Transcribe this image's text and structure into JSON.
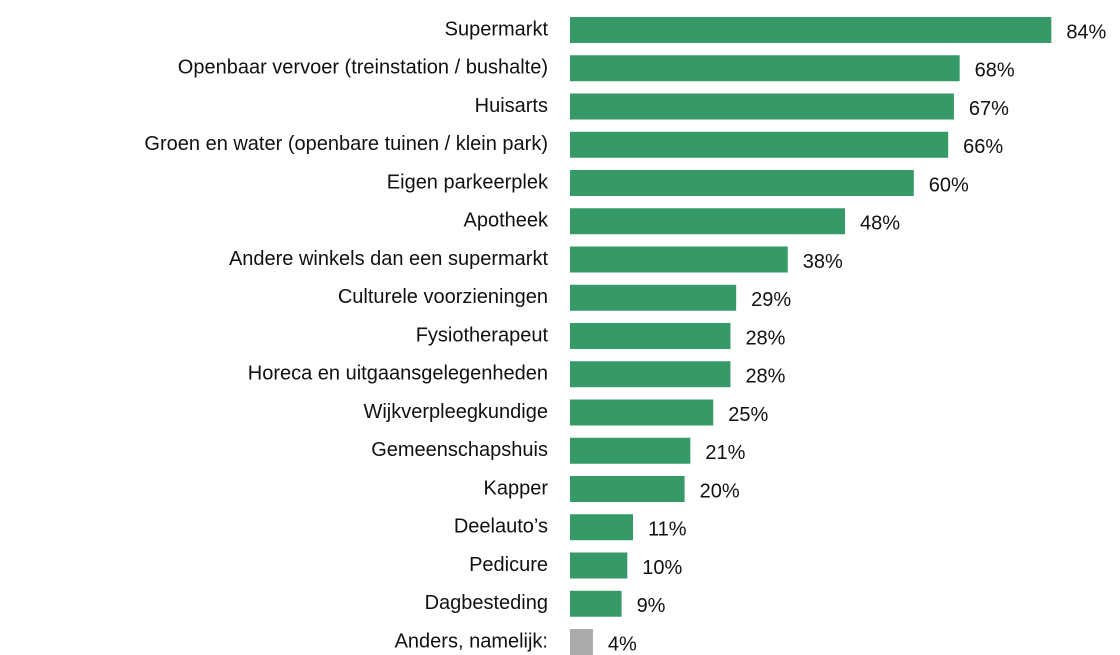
{
  "chart_data": {
    "type": "bar",
    "orientation": "horizontal",
    "categories": [
      "Supermarkt",
      "Openbaar vervoer (treinstation / bushalte)",
      "Huisarts",
      "Groen en water (openbare tuinen / klein park)",
      "Eigen parkeerplek",
      "Apotheek",
      "Andere winkels dan een supermarkt",
      "Culturele voorzieningen",
      "Fysiotherapeut",
      "Horeca en uitgaansgelegenheden",
      "Wijkverpleegkundige",
      "Gemeenschapshuis",
      "Kapper",
      "Deelauto’s",
      "Pedicure",
      "Dagbesteding",
      "Anders, namelijk:"
    ],
    "values": [
      84,
      68,
      67,
      66,
      60,
      48,
      38,
      29,
      28,
      28,
      25,
      21,
      20,
      11,
      10,
      9,
      4
    ],
    "value_labels": [
      "84%",
      "68%",
      "67%",
      "66%",
      "60%",
      "48%",
      "38%",
      "29%",
      "28%",
      "28%",
      "25%",
      "21%",
      "20%",
      "11%",
      "10%",
      "9%",
      "4%"
    ],
    "colors": [
      "#369a68",
      "#369a68",
      "#369a68",
      "#369a68",
      "#369a68",
      "#369a68",
      "#369a68",
      "#369a68",
      "#369a68",
      "#369a68",
      "#369a68",
      "#369a68",
      "#369a68",
      "#369a68",
      "#369a68",
      "#369a68",
      "#aaaaaa"
    ]
  }
}
